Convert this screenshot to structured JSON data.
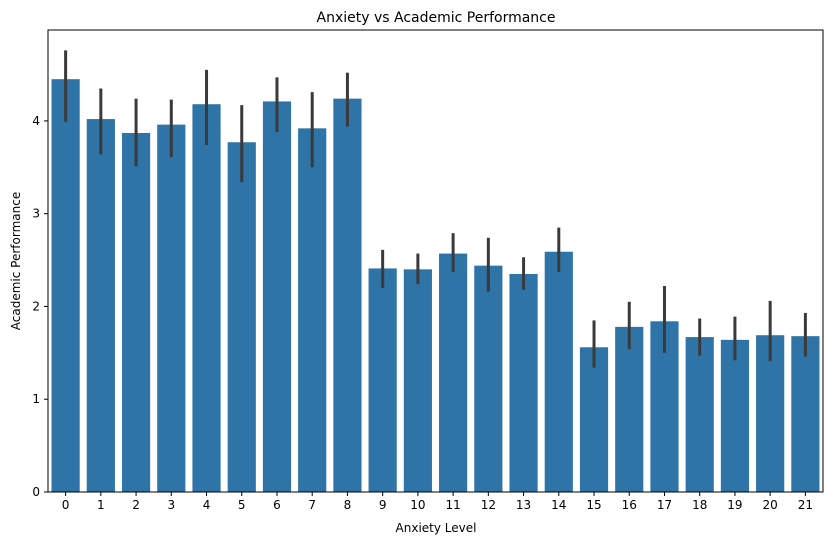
{
  "chart_data": {
    "type": "bar",
    "title": "Anxiety vs Academic Performance",
    "xlabel": "Anxiety Level",
    "ylabel": "Academic Performance",
    "categories": [
      "0",
      "1",
      "2",
      "3",
      "4",
      "5",
      "6",
      "7",
      "8",
      "9",
      "10",
      "11",
      "12",
      "13",
      "14",
      "15",
      "16",
      "17",
      "18",
      "19",
      "20",
      "21"
    ],
    "values": [
      4.45,
      4.02,
      3.87,
      3.96,
      4.18,
      3.77,
      4.21,
      3.92,
      4.24,
      2.41,
      2.4,
      2.57,
      2.44,
      2.35,
      2.59,
      1.56,
      1.78,
      1.84,
      1.67,
      1.64,
      1.69,
      1.68
    ],
    "error_low": [
      3.99,
      3.64,
      3.51,
      3.61,
      3.74,
      3.34,
      3.88,
      3.5,
      3.94,
      2.2,
      2.24,
      2.37,
      2.16,
      2.18,
      2.37,
      1.34,
      1.54,
      1.5,
      1.47,
      1.42,
      1.41,
      1.46
    ],
    "error_high": [
      4.76,
      4.35,
      4.24,
      4.23,
      4.55,
      4.17,
      4.47,
      4.31,
      4.52,
      2.61,
      2.57,
      2.79,
      2.74,
      2.53,
      2.85,
      1.85,
      2.05,
      2.22,
      1.87,
      1.89,
      2.06,
      1.93
    ],
    "yticks": [
      0,
      1,
      2,
      3,
      4
    ],
    "ylim": [
      0,
      4.98
    ],
    "grid": false,
    "bar_color": "#2e74a6",
    "error_color": "#3a3a3a"
  }
}
